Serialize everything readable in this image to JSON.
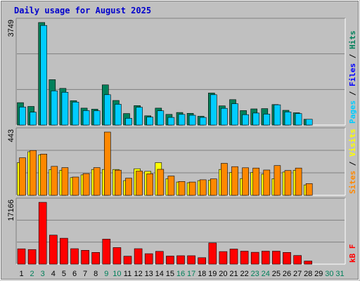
{
  "chart_data": [
    {
      "type": "bar",
      "title": "Daily usage for August 2025",
      "panel": "pages-files-hits",
      "ymax_label": "3749",
      "ylim": [
        0,
        3749
      ],
      "right_labels": [
        "Pages",
        "Files",
        "Hits"
      ],
      "categories": [
        "1",
        "2",
        "3",
        "4",
        "5",
        "6",
        "7",
        "8",
        "9",
        "10",
        "11",
        "12",
        "13",
        "14",
        "15",
        "16",
        "17",
        "18",
        "19",
        "20",
        "21",
        "22",
        "23",
        "24",
        "25",
        "26",
        "27",
        "28",
        "29",
        "30",
        "31"
      ],
      "series": [
        {
          "name": "Hits",
          "color": "#00805a",
          "values": [
            820,
            680,
            3749,
            1660,
            1340,
            890,
            620,
            580,
            1470,
            900,
            420,
            710,
            340,
            620,
            390,
            460,
            430,
            320,
            1170,
            700,
            930,
            530,
            590,
            600,
            750,
            540,
            450,
            210,
            null,
            null,
            null
          ]
        },
        {
          "name": "Files",
          "color": "#00ccff",
          "values": [
            660,
            470,
            3640,
            1250,
            1200,
            840,
            530,
            520,
            1110,
            760,
            250,
            650,
            290,
            520,
            280,
            390,
            360,
            280,
            1110,
            610,
            780,
            380,
            440,
            400,
            740,
            480,
            420,
            210,
            null,
            null,
            null
          ]
        },
        {
          "name": "Pages",
          "color": "#00ccff",
          "values": [
            null,
            null,
            null,
            null,
            null,
            null,
            null,
            null,
            null,
            null,
            null,
            null,
            null,
            null,
            null,
            null,
            null,
            null,
            null,
            null,
            null,
            null,
            null,
            null,
            null,
            null,
            null,
            null,
            null,
            null,
            null
          ]
        }
      ]
    },
    {
      "type": "bar",
      "panel": "visits-sites",
      "ymax_label": "443",
      "ylim": [
        0,
        443
      ],
      "right_labels": [
        "Sites",
        "Visits"
      ],
      "categories": [
        "1",
        "2",
        "3",
        "4",
        "5",
        "6",
        "7",
        "8",
        "9",
        "10",
        "11",
        "12",
        "13",
        "14",
        "15",
        "16",
        "17",
        "18",
        "19",
        "20",
        "21",
        "22",
        "23",
        "24",
        "25",
        "26",
        "27",
        "28",
        "29",
        "30",
        "31"
      ],
      "series": [
        {
          "name": "Visits",
          "color": "#ffff00",
          "values": [
            229,
            305,
            283,
            180,
            175,
            124,
            143,
            181,
            181,
            181,
            103,
            186,
            168,
            229,
            116,
            93,
            88,
            103,
            106,
            181,
            160,
            117,
            161,
            148,
            116,
            163,
            175,
            73,
            null,
            null,
            null
          ]
        },
        {
          "name": "Sites",
          "color": "#ff8800",
          "values": [
            263,
            314,
            289,
            203,
            194,
            128,
            152,
            194,
            443,
            176,
            120,
            170,
            151,
            182,
            135,
            97,
            93,
            109,
            115,
            224,
            201,
            193,
            191,
            177,
            208,
            174,
            191,
            82,
            null,
            null,
            null
          ]
        }
      ]
    },
    {
      "type": "bar",
      "panel": "kbf",
      "ymax_label": "17166",
      "ylim": [
        0,
        17166
      ],
      "right_labels": [
        "kB F"
      ],
      "categories": [
        "1",
        "2",
        "3",
        "4",
        "5",
        "6",
        "7",
        "8",
        "9",
        "10",
        "11",
        "12",
        "13",
        "14",
        "15",
        "16",
        "17",
        "18",
        "19",
        "20",
        "21",
        "22",
        "23",
        "24",
        "25",
        "26",
        "27",
        "28",
        "29",
        "30",
        "31"
      ],
      "series": [
        {
          "name": "kB F",
          "color": "#ff0000",
          "values": [
            4250,
            4050,
            17166,
            8050,
            7200,
            4300,
            3850,
            3250,
            6950,
            4600,
            2200,
            4300,
            2900,
            3550,
            2250,
            2350,
            2350,
            1800,
            5900,
            3500,
            4200,
            3600,
            3300,
            3600,
            3600,
            3250,
            2400,
            850,
            null,
            null,
            null
          ]
        }
      ]
    }
  ],
  "x_labels": {
    "weekend_days": [
      "2",
      "3",
      "9",
      "10",
      "16",
      "17",
      "23",
      "24",
      "30",
      "31"
    ],
    "weekday_color": "#000000",
    "weekend_color": "#00805a",
    "bold_days": [
      "3",
      "9",
      "16",
      "17",
      "23",
      "24",
      "30",
      "31"
    ]
  },
  "colors": {
    "background": "#c0c0c0",
    "title": "#0000cc",
    "hits": "#00805a",
    "files": "#0000ff",
    "pages": "#00ccff",
    "visits": "#ffff00",
    "sites": "#ff8800",
    "kbf": "#ff0000"
  }
}
